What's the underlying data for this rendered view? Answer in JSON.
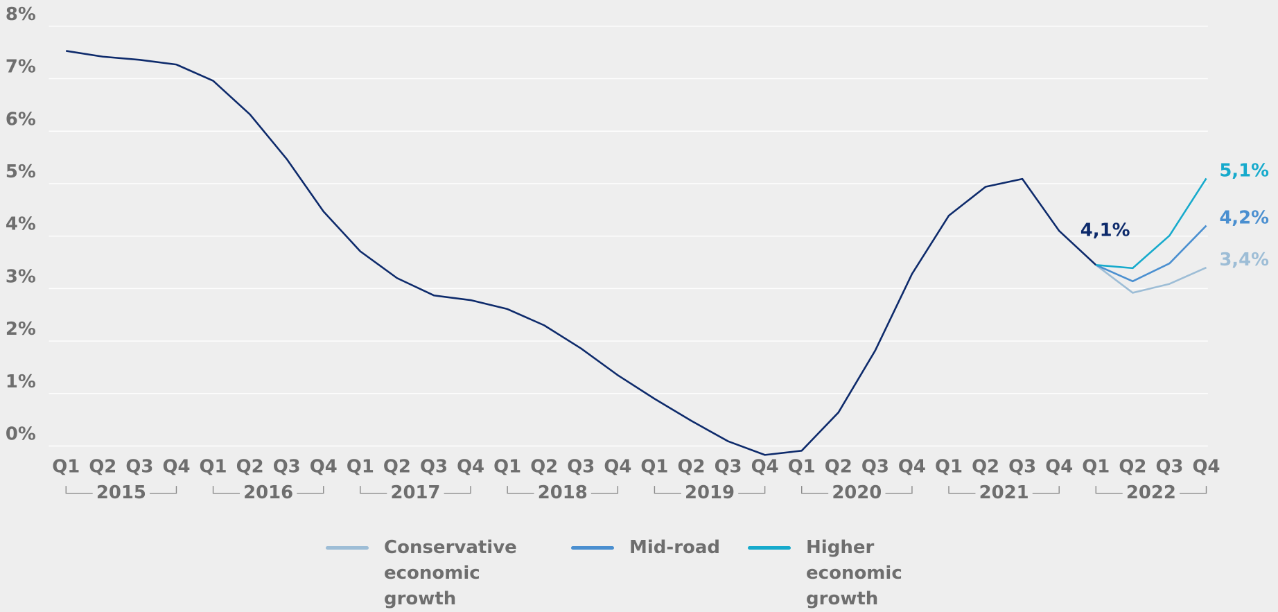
{
  "chart_data": {
    "type": "line",
    "categories": [
      "Q1",
      "Q2",
      "Q3",
      "Q4",
      "Q1",
      "Q2",
      "Q3",
      "Q4",
      "Q1",
      "Q2",
      "Q3",
      "Q4",
      "Q1",
      "Q2",
      "Q3",
      "Q4",
      "Q1",
      "Q2",
      "Q3",
      "Q4",
      "Q1",
      "Q2",
      "Q3",
      "Q4",
      "Q1",
      "Q2",
      "Q3",
      "Q4",
      "Q1",
      "Q2",
      "Q3",
      "Q4"
    ],
    "years": [
      "2015",
      "2016",
      "2017",
      "2018",
      "2019",
      "2020",
      "2021",
      "2022"
    ],
    "ylim": [
      -0.3,
      8.3
    ],
    "yticks": [
      {
        "value": 0,
        "label": "0%"
      },
      {
        "value": 1,
        "label": "1%"
      },
      {
        "value": 2,
        "label": "2%"
      },
      {
        "value": 3,
        "label": "3%"
      },
      {
        "value": 4,
        "label": "4%"
      },
      {
        "value": 5,
        "label": "5%"
      },
      {
        "value": 6,
        "label": "6%"
      },
      {
        "value": 7,
        "label": "7%"
      },
      {
        "value": 8,
        "label": "8%"
      }
    ],
    "grid": true,
    "series": [
      {
        "color": "#0d2a6b",
        "values": [
          7.53,
          7.42,
          7.36,
          7.27,
          6.96,
          6.32,
          5.47,
          4.47,
          3.71,
          3.2,
          2.87,
          2.78,
          2.61,
          2.3,
          1.86,
          1.35,
          0.9,
          0.48,
          0.09,
          -0.17,
          -0.09,
          0.64,
          1.82,
          3.28,
          4.39,
          4.94,
          5.09,
          4.1,
          3.45,
          null,
          null,
          null
        ],
        "value_labels": [
          null,
          null,
          null,
          null,
          null,
          null,
          null,
          null,
          null,
          null,
          null,
          null,
          null,
          null,
          null,
          null,
          null,
          null,
          null,
          null,
          null,
          null,
          null,
          null,
          null,
          null,
          null,
          "4,1%",
          null,
          null,
          null,
          null
        ]
      },
      {
        "name": "Conservative economic growth",
        "color": "#9dbdd6",
        "values": [
          null,
          null,
          null,
          null,
          null,
          null,
          null,
          null,
          null,
          null,
          null,
          null,
          null,
          null,
          null,
          null,
          null,
          null,
          null,
          null,
          null,
          null,
          null,
          null,
          null,
          null,
          null,
          null,
          3.45,
          2.92,
          3.09,
          3.4
        ],
        "value_labels": [
          null,
          null,
          null,
          null,
          null,
          null,
          null,
          null,
          null,
          null,
          null,
          null,
          null,
          null,
          null,
          null,
          null,
          null,
          null,
          null,
          null,
          null,
          null,
          null,
          null,
          null,
          null,
          null,
          null,
          null,
          null,
          "3,4%"
        ]
      },
      {
        "name": "Mid-road",
        "color": "#4a8fd0",
        "values": [
          null,
          null,
          null,
          null,
          null,
          null,
          null,
          null,
          null,
          null,
          null,
          null,
          null,
          null,
          null,
          null,
          null,
          null,
          null,
          null,
          null,
          null,
          null,
          null,
          null,
          null,
          null,
          null,
          3.45,
          3.14,
          3.48,
          4.2
        ],
        "value_labels": [
          null,
          null,
          null,
          null,
          null,
          null,
          null,
          null,
          null,
          null,
          null,
          null,
          null,
          null,
          null,
          null,
          null,
          null,
          null,
          null,
          null,
          null,
          null,
          null,
          null,
          null,
          null,
          null,
          null,
          null,
          null,
          "4,2%"
        ]
      },
      {
        "name": "Higher economic growth",
        "color": "#16aacc",
        "values": [
          null,
          null,
          null,
          null,
          null,
          null,
          null,
          null,
          null,
          null,
          null,
          null,
          null,
          null,
          null,
          null,
          null,
          null,
          null,
          null,
          null,
          null,
          null,
          null,
          null,
          null,
          null,
          null,
          3.45,
          3.39,
          4.01,
          5.1
        ],
        "value_labels": [
          null,
          null,
          null,
          null,
          null,
          null,
          null,
          null,
          null,
          null,
          null,
          null,
          null,
          null,
          null,
          null,
          null,
          null,
          null,
          null,
          null,
          null,
          null,
          null,
          null,
          null,
          null,
          null,
          null,
          null,
          null,
          "5,1%"
        ]
      }
    ]
  }
}
